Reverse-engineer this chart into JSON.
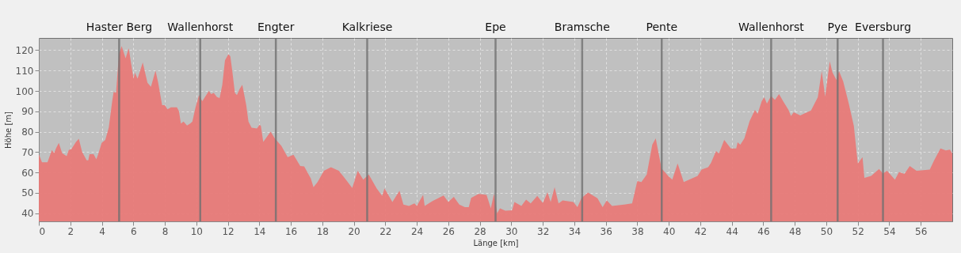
{
  "chart_data": {
    "type": "area",
    "xlabel": "Länge [km]",
    "ylabel": "Höhe [m]",
    "xlim": [
      0,
      58
    ],
    "xticks": [
      0,
      2,
      4,
      6,
      8,
      10,
      12,
      14,
      16,
      18,
      20,
      22,
      24,
      26,
      28,
      30,
      32,
      34,
      36,
      38,
      40,
      42,
      44,
      46,
      48,
      50,
      52,
      54,
      56
    ],
    "ylim": [
      36,
      126
    ],
    "yticks": [
      40,
      50,
      60,
      70,
      80,
      90,
      100,
      110,
      120
    ],
    "grid": true,
    "line_style": "dashed",
    "x": [
      0,
      0.2,
      0.55,
      0.83,
      0.97,
      1.1,
      1.27,
      1.48,
      1.77,
      1.9,
      2.07,
      2.36,
      2.54,
      2.75,
      3.04,
      3.14,
      3.22,
      3.48,
      3.65,
      3.77,
      3.99,
      4.22,
      4.44,
      4.66,
      4.75,
      4.9,
      5.09,
      5.26,
      5.51,
      5.71,
      5.93,
      6.02,
      6.1,
      6.27,
      6.6,
      6.9,
      7.12,
      7.41,
      7.58,
      7.83,
      8.0,
      8.17,
      8.39,
      8.77,
      8.9,
      9.02,
      9.19,
      9.41,
      9.61,
      9.75,
      9.95,
      10.17,
      10.38,
      10.63,
      10.8,
      10.94,
      11.11,
      11.31,
      11.48,
      11.65,
      11.82,
      12.04,
      12.16,
      12.28,
      12.45,
      12.58,
      12.75,
      12.92,
      13.17,
      13.31,
      13.51,
      13.85,
      14.02,
      14.1,
      14.25,
      14.72,
      14.98,
      15.4,
      15.8,
      16.17,
      16.6,
      16.85,
      17.27,
      17.44,
      17.7,
      18.1,
      18.55,
      19.05,
      19.5,
      19.9,
      20.25,
      20.6,
      20.95,
      21.45,
      21.8,
      21.95,
      22.45,
      22.9,
      23.15,
      23.5,
      23.85,
      24.0,
      24.4,
      24.5,
      25.0,
      25.7,
      26.0,
      26.35,
      26.7,
      27.05,
      27.3,
      27.45,
      27.93,
      28.43,
      28.7,
      28.9,
      29.1,
      29.28,
      29.62,
      30.05,
      30.2,
      30.64,
      30.94,
      31.23,
      31.65,
      32.0,
      32.3,
      32.5,
      32.75,
      33.0,
      33.26,
      33.94,
      34.2,
      34.45,
      34.87,
      35.47,
      35.8,
      36.06,
      36.4,
      37.16,
      37.67,
      38.0,
      38.26,
      38.6,
      38.95,
      39.17,
      39.54,
      39.96,
      40.22,
      40.56,
      40.95,
      41.83,
      42.08,
      42.5,
      42.68,
      43.0,
      43.18,
      43.52,
      43.94,
      44.28,
      44.37,
      44.54,
      44.8,
      45.13,
      45.47,
      45.64,
      45.9,
      46.06,
      46.23,
      46.49,
      46.74,
      47.0,
      47.26,
      47.6,
      47.76,
      47.93,
      48.35,
      49.03,
      49.46,
      49.71,
      49.93,
      50.22,
      50.39,
      50.64,
      50.81,
      51.07,
      51.41,
      51.75,
      52.0,
      52.3,
      52.42,
      52.85,
      53.35,
      53.6,
      53.86,
      54.36,
      54.62,
      54.96,
      55.3,
      55.73,
      56.57,
      56.83,
      57.25,
      57.59,
      57.85,
      58.0
    ],
    "series": [
      {
        "color": "#e87a78",
        "values": [
          69,
          65,
          65,
          71,
          69.5,
          72,
          74.5,
          69.5,
          68,
          71,
          71.5,
          75,
          76.5,
          70,
          66,
          66,
          69,
          69,
          66.5,
          69,
          74.5,
          76,
          82,
          95,
          99.5,
          99,
          118,
          122,
          116,
          121,
          110,
          106,
          109,
          106,
          114,
          104,
          102,
          110,
          104,
          93,
          93,
          91,
          92,
          92,
          90,
          84,
          85,
          83,
          84,
          85,
          92,
          98,
          95,
          98,
          100,
          98.5,
          99,
          97,
          96.5,
          103,
          115,
          118,
          117,
          110,
          99,
          98,
          101,
          103,
          93,
          85,
          82,
          81.6,
          83.4,
          82.8,
          75,
          80,
          76.7,
          73,
          67.5,
          68.7,
          63.2,
          63,
          57,
          52.8,
          55.3,
          60.8,
          62.6,
          60.8,
          56.5,
          52.4,
          60.8,
          56.5,
          59,
          52.2,
          48.5,
          52.2,
          45.5,
          51,
          44.2,
          43.6,
          44.8,
          43.6,
          49,
          43.6,
          46,
          48.7,
          45.5,
          48,
          44.2,
          43,
          43,
          47.5,
          49.5,
          49,
          42.4,
          49.5,
          40,
          42.4,
          41.2,
          41.4,
          45.5,
          43.6,
          46.7,
          44.8,
          48.5,
          45,
          50.3,
          45.5,
          52.8,
          44.8,
          46.3,
          45.5,
          43,
          47.3,
          50.2,
          47.3,
          43,
          46.3,
          43.6,
          44.2,
          44.8,
          55.8,
          55.3,
          59,
          73.6,
          76.7,
          62,
          58.3,
          56.5,
          64.4,
          55.3,
          58.3,
          61.4,
          62.6,
          64.7,
          70.5,
          69.3,
          76,
          71.8,
          71.8,
          74.8,
          73.6,
          76.7,
          85.2,
          90.7,
          88.8,
          95,
          96.9,
          93.8,
          97.5,
          95.6,
          98.5,
          95,
          90.7,
          87.7,
          89.5,
          88,
          90.4,
          96.9,
          109.7,
          97.2,
          114.6,
          109.1,
          105.4,
          109.7,
          104.8,
          94.4,
          82.8,
          64.4,
          67.5,
          57.3,
          58.3,
          61.7,
          59.5,
          60.8,
          56.5,
          60.2,
          59.3,
          63.2,
          60.8,
          61.4,
          65.7,
          71.8,
          70.8,
          71.2,
          69.3
        ]
      }
    ],
    "ref_lines": [
      {
        "axis": "x",
        "value": 5.1,
        "label": "Haster Berg",
        "color": "#707070"
      },
      {
        "axis": "x",
        "value": 10.25,
        "label": "Wallenhorst",
        "color": "#707070"
      },
      {
        "axis": "x",
        "value": 15.05,
        "label": "Engter",
        "color": "#707070"
      },
      {
        "axis": "x",
        "value": 20.85,
        "label": "Kalkriese",
        "color": "#707070"
      },
      {
        "axis": "x",
        "value": 29.0,
        "label": "Epe",
        "color": "#707070"
      },
      {
        "axis": "x",
        "value": 34.5,
        "label": "Bramsche",
        "color": "#707070"
      },
      {
        "axis": "x",
        "value": 39.55,
        "label": "Pente",
        "color": "#707070"
      },
      {
        "axis": "x",
        "value": 46.5,
        "label": "Wallenhorst",
        "color": "#707070"
      },
      {
        "axis": "x",
        "value": 50.72,
        "label": "Pye",
        "color": "#707070"
      },
      {
        "axis": "x",
        "value": 53.6,
        "label": "Eversburg",
        "color": "#707070"
      }
    ]
  }
}
